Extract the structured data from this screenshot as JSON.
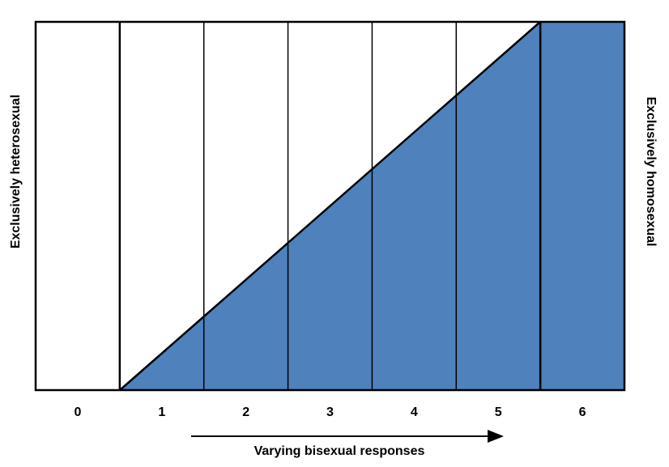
{
  "scale": {
    "labels": [
      0,
      1,
      2,
      3,
      4,
      5,
      6
    ]
  },
  "left_label": "Exclusively heterosexual",
  "right_label": "Exclusively homosexual",
  "bottom_label": "Varying bisexual responses"
}
